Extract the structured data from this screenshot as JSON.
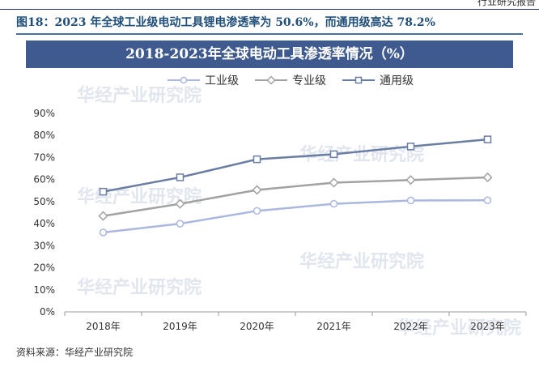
{
  "page": {
    "header_text": "行业研究报告",
    "figure_title": "图18：2023 年全球工业级电动工具锂电渗透率为 50.6%，而通用级高达 78.2%",
    "source": "资料来源：华经产业研究院",
    "watermark": "华经产业研究院"
  },
  "chart_data": {
    "type": "line",
    "title": "2018-2023年全球电动工具渗透率情况（%）",
    "categories": [
      "2018年",
      "2019年",
      "2020年",
      "2021年",
      "2022年",
      "2023年"
    ],
    "yticks": [
      "0%",
      "10%",
      "20%",
      "30%",
      "40%",
      "50%",
      "60%",
      "70%",
      "80%",
      "90%"
    ],
    "ylim": [
      0,
      90
    ],
    "grid": false,
    "legend_position": "top",
    "series": [
      {
        "name": "工业级",
        "values": [
          36.0,
          40.0,
          45.8,
          49.0,
          50.5,
          50.6
        ],
        "color": "#aab8e0",
        "marker": "circle"
      },
      {
        "name": "专业级",
        "values": [
          43.5,
          49.0,
          55.3,
          58.6,
          59.8,
          61.0
        ],
        "color": "#a2a2a2",
        "marker": "diamond"
      },
      {
        "name": "通用级",
        "values": [
          54.5,
          61.0,
          69.2,
          71.5,
          75.0,
          78.2
        ],
        "color": "#6a7ea3",
        "marker": "square"
      }
    ]
  }
}
